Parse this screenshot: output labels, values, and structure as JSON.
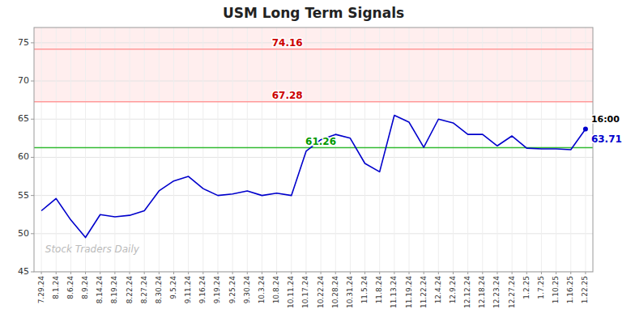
{
  "chart_data": {
    "type": "line",
    "title": "USM Long Term Signals",
    "categories": [
      "7.29.24",
      "8.1.24",
      "8.6.24",
      "8.9.24",
      "8.14.24",
      "8.19.24",
      "8.22.24",
      "8.27.24",
      "8.30.24",
      "9.5.24",
      "9.11.24",
      "9.16.24",
      "9.19.24",
      "9.25.24",
      "9.30.24",
      "10.3.24",
      "10.8.24",
      "10.11.24",
      "10.17.24",
      "10.22.24",
      "10.28.24",
      "10.31.24",
      "11.5.24",
      "11.8.24",
      "11.13.24",
      "11.19.24",
      "11.22.24",
      "12.4.24",
      "12.9.24",
      "12.12.24",
      "12.18.24",
      "12.23.24",
      "12.27.24",
      "1.2.25",
      "1.7.25",
      "1.10.25",
      "1.16.25",
      "1.22.25"
    ],
    "values": [
      53.0,
      54.6,
      51.8,
      49.5,
      52.5,
      52.2,
      52.4,
      53.0,
      55.6,
      56.9,
      57.5,
      55.9,
      55.0,
      55.2,
      55.6,
      55.0,
      55.3,
      55.0,
      60.8,
      62.3,
      63.0,
      62.5,
      59.2,
      58.1,
      65.5,
      64.6,
      61.3,
      65.0,
      64.5,
      63.0,
      63.0,
      61.5,
      62.8,
      61.2,
      61.1,
      61.1,
      61.0,
      63.71
    ],
    "color": "#0000CC",
    "ylim": [
      45,
      77
    ],
    "yticks": [
      45,
      50,
      55,
      60,
      65,
      70,
      75
    ],
    "grid": true,
    "reference_lines": [
      {
        "value": 61.26,
        "label": "61.26",
        "color": "#33BB33",
        "label_color": "#009900"
      },
      {
        "value": 67.28,
        "label": "67.28",
        "color": "#FF9999",
        "label_color": "#CC0000"
      },
      {
        "value": 74.16,
        "label": "74.16",
        "color": "#FF9999",
        "label_color": "#CC0000"
      }
    ],
    "shade": {
      "from": 67.28,
      "to": 77,
      "color": "#FFEEEE"
    },
    "annotations": [
      {
        "text": "16:00",
        "color": "#000000"
      },
      {
        "text": "63.71",
        "color": "#0000CC"
      }
    ],
    "watermark": "Stock Traders Daily"
  }
}
